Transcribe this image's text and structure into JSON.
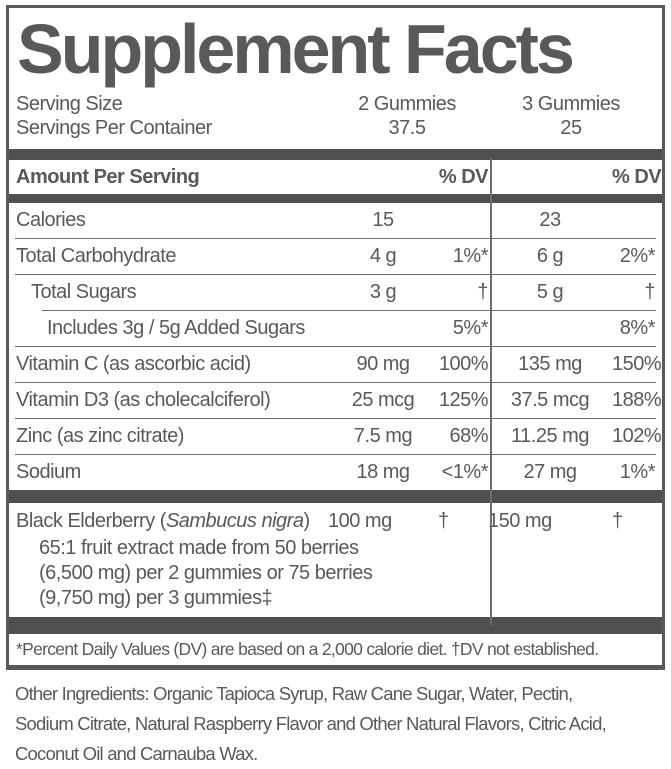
{
  "title": "Supplement Facts",
  "colors": {
    "text": "#58595b",
    "bar": "#4f5052",
    "hairline": "#6d6e70"
  },
  "serving": {
    "rows": [
      {
        "label": "Serving Size",
        "col1": "2 Gummies",
        "col2": "3 Gummies"
      },
      {
        "label": "Servings Per Container",
        "col1": "37.5",
        "col2": "25"
      }
    ]
  },
  "header": {
    "label": "Amount Per Serving",
    "dv1": "% DV",
    "dv2": "% DV"
  },
  "rows": [
    {
      "name": "Calories",
      "amt1": "15",
      "dv1": "",
      "amt2": "23",
      "dv2": ""
    },
    {
      "name": "Total Carbohydrate",
      "amt1": "4 g",
      "dv1": "1%*",
      "amt2": "6 g",
      "dv2": "2%*"
    },
    {
      "name": "Total Sugars",
      "amt1": "3 g",
      "dv1": "†",
      "amt2": "5 g",
      "dv2": "†"
    },
    {
      "name": "Includes 3g / 5g Added Sugars",
      "amt1": "",
      "dv1": "5%*",
      "amt2": "",
      "dv2": "8%*"
    },
    {
      "name": "Vitamin C (as ascorbic acid)",
      "amt1": "90 mg",
      "dv1": "100%",
      "amt2": "135 mg",
      "dv2": "150%"
    },
    {
      "name": "Vitamin D3 (as cholecalciferol)",
      "amt1": "25 mcg",
      "dv1": "125%",
      "amt2": "37.5 mcg",
      "dv2": "188%"
    },
    {
      "name": "Zinc (as zinc citrate)",
      "amt1": "7.5 mg",
      "dv1": "68%",
      "amt2": "11.25 mg",
      "dv2": "102%"
    },
    {
      "name": "Sodium",
      "amt1": "18 mg",
      "dv1": "<1%*",
      "amt2": "27 mg",
      "dv2": "1%*"
    }
  ],
  "elderberry": {
    "name_prefix": "Black Elderberry (",
    "species": "Sambucus nigra",
    "name_suffix": ")",
    "amt1": "100 mg",
    "dv1": "†",
    "amt2": "150 mg",
    "dv2": "†",
    "detail_lines": [
      "65:1 fruit extract made from 50 berries",
      "(6,500 mg) per 2 gummies or 75 berries",
      "(9,750 mg) per 3 gummies‡"
    ]
  },
  "footnote": "*Percent Daily Values (DV) are based on a 2,000 calorie diet. †DV not established.",
  "other_ingredients": {
    "lines": [
      "Other Ingredients: Organic Tapioca Syrup, Raw Cane Sugar, Water, Pectin,",
      "Sodium Citrate, Natural Raspberry Flavor and Other Natural Flavors, Citric Acid,",
      "Coconut Oil and Carnauba Wax."
    ]
  }
}
